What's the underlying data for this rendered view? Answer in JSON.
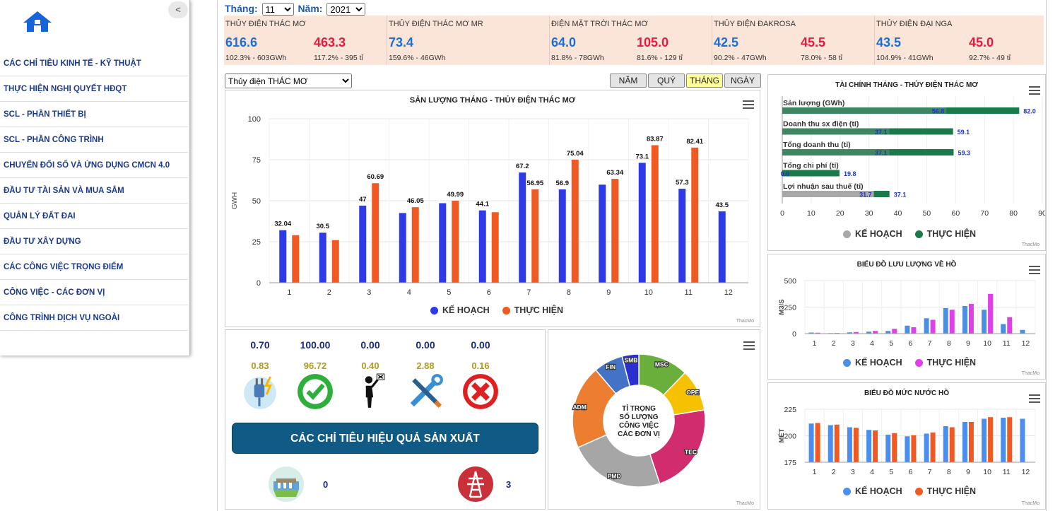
{
  "sidebar": {
    "collapse_label": "<",
    "items": [
      "CÁC CHỈ TIÊU KINH TẾ - KỸ THUẬT",
      "THỰC HIỆN NGHỊ QUYẾT HĐQT",
      "SCL - PHẦN THIẾT BỊ",
      "SCL - PHẦN CÔNG TRÌNH",
      "CHUYỂN ĐỔI SỐ VÀ ỨNG DỤNG CMCN 4.0",
      "ĐẦU TƯ TÀI SẢN VÀ MUA SẮM",
      "QUẢN LÝ ĐẤT ĐAI",
      "ĐẦU TƯ XÂY DỰNG",
      "CÁC CÔNG VIỆC TRỌNG ĐIỂM",
      "CÔNG VIỆC - CÁC ĐƠN VỊ",
      "CÔNG TRÌNH DỊCH VỤ NGOÀI"
    ]
  },
  "period": {
    "month_label": "Tháng:",
    "month": "11",
    "year_label": "Năm:",
    "year": "2021"
  },
  "kpis": [
    {
      "name": "THỦY ĐIỆN THÁC MƠ",
      "v1": "616.6",
      "s1": "102.3% - 603GWh",
      "v2": "463.3",
      "s2": "117.2% - 395 tỉ"
    },
    {
      "name": "THỦY ĐIỆN THÁC MƠ MR",
      "v1": "73.4",
      "s1": "159.6% - 46GWh",
      "v2": "",
      "s2": ""
    },
    {
      "name": "ĐIỆN MẶT TRỜI THÁC MƠ",
      "v1": "64.0",
      "s1": "81.8% - 78GWh",
      "v2": "105.0",
      "s2": "81.6% - 129 tỉ"
    },
    {
      "name": "THỦY ĐIỆN ĐAKROSA",
      "v1": "42.5",
      "s1": "90.2% - 47GWh",
      "v2": "45.5",
      "s2": "78.0% - 58 tỉ"
    },
    {
      "name": "THỦY ĐIỆN ĐẠI NGA",
      "v1": "43.5",
      "s1": "104.9% - 41GWh",
      "v2": "45.0",
      "s2": "92.7% - 49 tỉ"
    }
  ],
  "plant_select": "Thủy điện THÁC MƠ",
  "tabs": [
    "NĂM",
    "QUÝ",
    "THÁNG",
    "NGÀY"
  ],
  "active_tab": "THÁNG",
  "legend": {
    "plan": "KẾ HOẠCH",
    "actual": "THỰC HIỆN"
  },
  "colors": {
    "plan_main": "#2e3ae8",
    "actual_main": "#f05a22",
    "fin_plan": "#a8a8a8",
    "fin_actual": "#1b7a4a",
    "flow_plan": "#4a90e2",
    "flow_actual": "#e040e8",
    "level_plan": "#4a8ef0",
    "level_actual": "#f05a22"
  },
  "credit": "ThacMo",
  "chart_data": [
    {
      "type": "bar",
      "title": "SẢN LƯỢNG THÁNG - THỦY ĐIỆN THÁC MƠ",
      "ylabel": "GWH",
      "ylim": [
        0,
        100
      ],
      "yticks": [
        0,
        25,
        50,
        75,
        100
      ],
      "categories": [
        "1",
        "2",
        "3",
        "4",
        "5",
        "6",
        "7",
        "8",
        "9",
        "10",
        "11",
        "12"
      ],
      "series": [
        {
          "name": "KẾ HOẠCH",
          "values": [
            32.04,
            30.5,
            47,
            42.5,
            48.5,
            44.1,
            67.2,
            56.9,
            59.8,
            73.1,
            57.3,
            43.5
          ]
        },
        {
          "name": "THỰC HIỆN",
          "values": [
            29,
            26,
            60.69,
            46.05,
            49.99,
            43,
            56.95,
            75.04,
            63.34,
            83.87,
            82.41,
            null
          ]
        }
      ],
      "labels": [
        "32.04",
        "30.5",
        "47",
        "60.69",
        "46.05",
        "49.99",
        "44.1",
        "67.2",
        "56.95",
        "56.9",
        "75.04",
        "63.34",
        "73.1",
        "83.87",
        "57.3",
        "82.41",
        "43.5"
      ]
    },
    {
      "type": "bar",
      "orientation": "horizontal",
      "title": "TÀI CHÍNH THÁNG - THỦY ĐIỆN THÁC MƠ",
      "xlim": [
        0,
        90
      ],
      "xticks": [
        0,
        10,
        20,
        30,
        40,
        50,
        60,
        70,
        80,
        90
      ],
      "categories": [
        "Sản lượng (GWh)",
        "Doanh thu sx điện (tỉ)",
        "Tổng doanh thu (tỉ)",
        "Tổng chi phí (tỉ)",
        "Lợi nhuận sau thuế (tỉ)"
      ],
      "series": [
        {
          "name": "KẾ HOẠCH",
          "values": [
            56.8,
            37.1,
            37.1,
            0.0,
            31.7
          ]
        },
        {
          "name": "THỰC HIỆN",
          "values": [
            82.0,
            59.1,
            59.3,
            19.8,
            37.1
          ]
        }
      ]
    },
    {
      "type": "bar",
      "title": "BIỂU ĐỒ LƯU LƯỢNG VỀ HỒ",
      "ylabel": "M3/S",
      "ylim": [
        0,
        500
      ],
      "yticks": [
        0,
        250,
        500
      ],
      "categories": [
        "1",
        "2",
        "3",
        "4",
        "5",
        "6",
        "7",
        "8",
        "9",
        "10",
        "11",
        "12"
      ],
      "series": [
        {
          "name": "KẾ HOẠCH",
          "values": [
            10,
            5,
            12,
            18,
            25,
            75,
            145,
            240,
            260,
            225,
            90,
            35
          ]
        },
        {
          "name": "THỰC HIỆN",
          "values": [
            8,
            6,
            15,
            25,
            45,
            60,
            130,
            225,
            280,
            375,
            155,
            null
          ]
        }
      ]
    },
    {
      "type": "bar",
      "title": "BIỂU ĐỒ MỨC NƯỚC HỒ",
      "ylabel": "MÉT",
      "ylim": [
        175,
        225
      ],
      "yticks": [
        175,
        200,
        225
      ],
      "categories": [
        "1",
        "2",
        "3",
        "4",
        "5",
        "6",
        "7",
        "8",
        "9",
        "10",
        "11",
        "12"
      ],
      "series": [
        {
          "name": "KẾ HOẠCH",
          "values": [
            211.5,
            210,
            208,
            205.5,
            201,
            199.5,
            202,
            209,
            213,
            216,
            217,
            216
          ]
        },
        {
          "name": "THỰC HIỆN",
          "values": [
            212,
            210.5,
            207.5,
            205,
            202.5,
            200.5,
            203,
            208,
            213,
            217.5,
            217.5,
            null
          ]
        }
      ]
    },
    {
      "type": "pie",
      "title": "TỈ TRỌNG SỐ LƯỢNG CÔNG VIỆC CÁC ĐƠN VỊ",
      "categories": [
        "MSC",
        "OPE",
        "TEC",
        "PMD",
        "ADM",
        "FIN",
        "SMB"
      ],
      "values": [
        12,
        10,
        22,
        23,
        20,
        7,
        4
      ],
      "colors": [
        "#6aaf3c",
        "#f5c100",
        "#d12c6e",
        "#a6a6a6",
        "#ed7d31",
        "#4472c4",
        "#2a2fcf"
      ]
    }
  ],
  "indicators": [
    {
      "top": "0.70",
      "bottom": "0.83",
      "icon": "electric-plug-icon"
    },
    {
      "top": "100.00",
      "bottom": "96.72",
      "icon": "check-seal-icon"
    },
    {
      "top": "0.00",
      "bottom": "0.40",
      "icon": "person-flag-icon"
    },
    {
      "top": "0.00",
      "bottom": "2.88",
      "icon": "tools-icon"
    },
    {
      "top": "0.00",
      "bottom": "0.16",
      "icon": "red-x-icon"
    }
  ],
  "big_button": "CÁC CHỈ TIÊU HIỆU QUẢ SẢN XUẤT",
  "bottom_counts": {
    "dam": "0",
    "tower": "3"
  },
  "pie_center": [
    "TỈ TRỌNG",
    "SỐ LƯỢNG",
    "CÔNG VIỆC",
    "CÁC ĐƠN VỊ"
  ]
}
